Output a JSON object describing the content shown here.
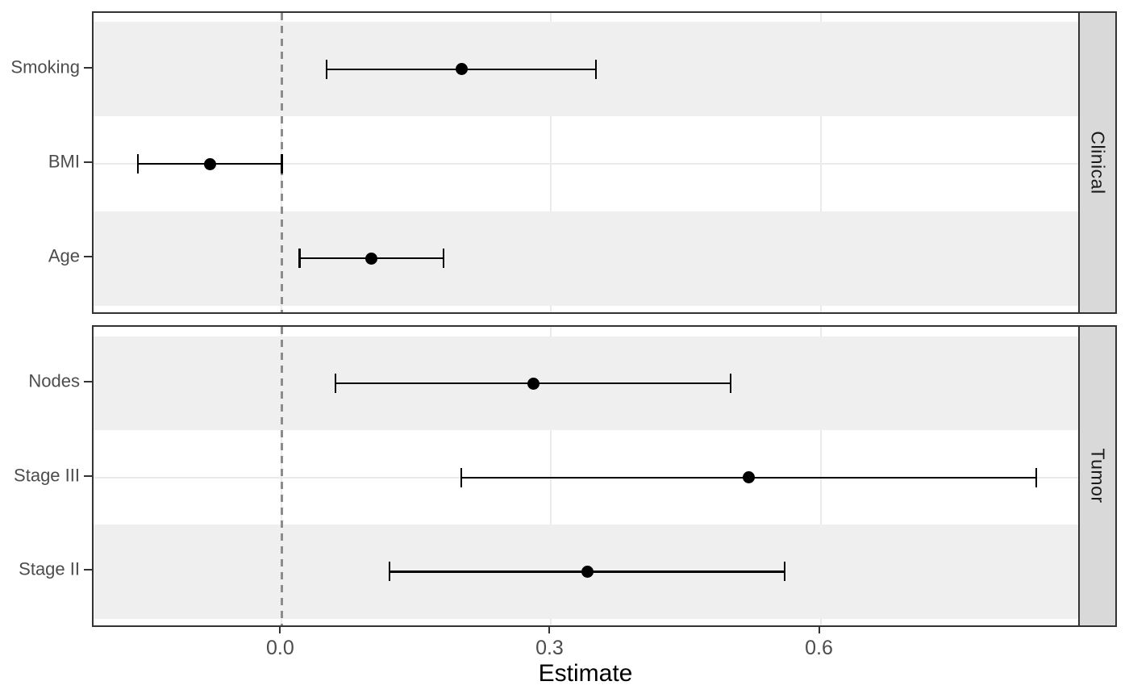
{
  "chart_data": {
    "type": "scatter",
    "subtype": "forest-plot-with-error-bars",
    "title": "",
    "xlabel": "Estimate",
    "ylabel": "",
    "xlim": [
      -0.21,
      0.89
    ],
    "x_ticks": [
      0.0,
      0.3,
      0.6
    ],
    "x_tick_labels": [
      "0.0",
      "0.3",
      "0.6"
    ],
    "grid": true,
    "legend_position": "none",
    "reference_line_x": 0.0,
    "facet_side": "right",
    "panels": [
      {
        "facet": "Clinical",
        "rows": [
          {
            "label": "Smoking",
            "estimate": 0.2,
            "ci_low": 0.05,
            "ci_high": 0.35
          },
          {
            "label": "BMI",
            "estimate": -0.08,
            "ci_low": -0.16,
            "ci_high": 0.0
          },
          {
            "label": "Age",
            "estimate": 0.1,
            "ci_low": 0.02,
            "ci_high": 0.18
          }
        ]
      },
      {
        "facet": "Tumor",
        "rows": [
          {
            "label": "Nodes",
            "estimate": 0.28,
            "ci_low": 0.06,
            "ci_high": 0.5
          },
          {
            "label": "Stage III",
            "estimate": 0.52,
            "ci_low": 0.2,
            "ci_high": 0.84
          },
          {
            "label": "Stage II",
            "estimate": 0.34,
            "ci_low": 0.12,
            "ci_high": 0.56
          }
        ]
      }
    ]
  },
  "colors": {
    "point": "#000000",
    "error_bar": "#000000",
    "row_stripe": "#EFEFEF",
    "gridline": "#EBEBEB",
    "panel_border": "#333333",
    "facet_strip_fill": "#D9D9D9",
    "facet_strip_text": "#1a1a1a",
    "axis_text": "#4D4D4D",
    "axis_title_text": "#000000",
    "reference_line": "#8C8C8C",
    "tick_mark": "#333333",
    "panel_background": "#FFFFFF"
  }
}
